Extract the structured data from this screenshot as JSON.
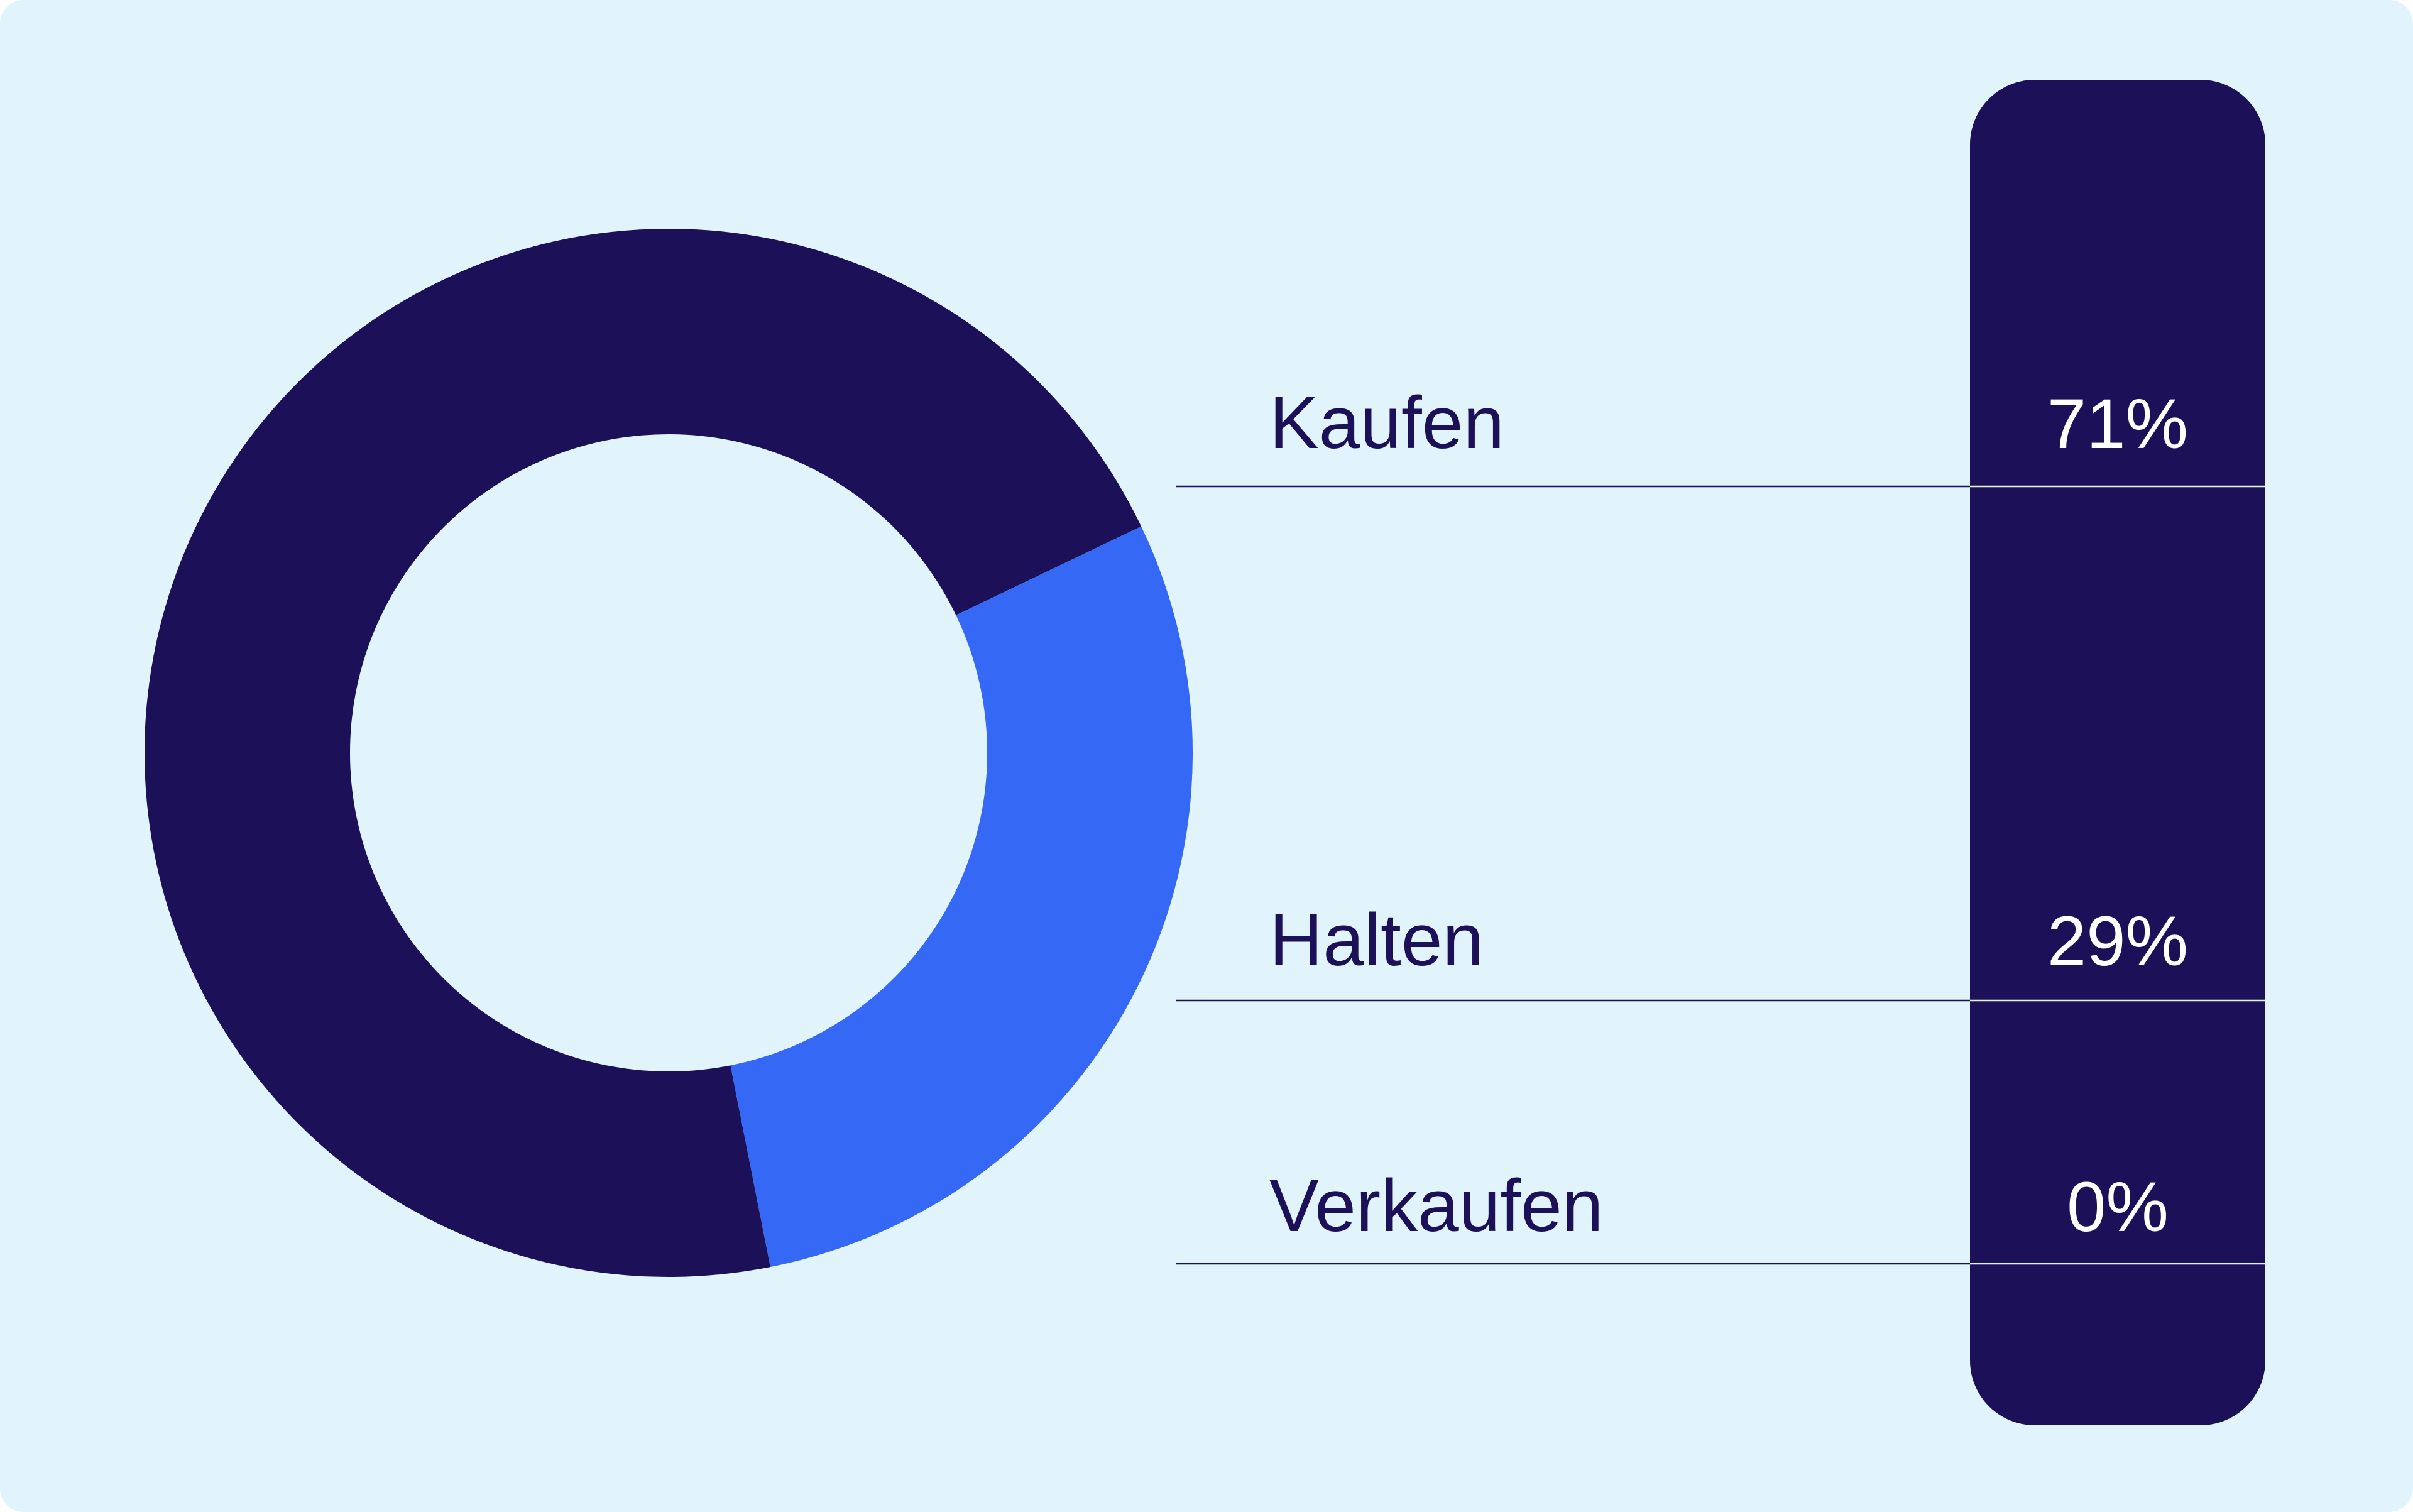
{
  "chart_data": {
    "type": "donut",
    "categories": [
      "Kaufen",
      "Halten",
      "Verkaufen"
    ],
    "values": [
      71,
      29,
      0
    ],
    "value_labels": [
      "71%",
      "29%",
      "0%"
    ],
    "colors": [
      "#1c1159",
      "#3568f5",
      null
    ]
  }
}
